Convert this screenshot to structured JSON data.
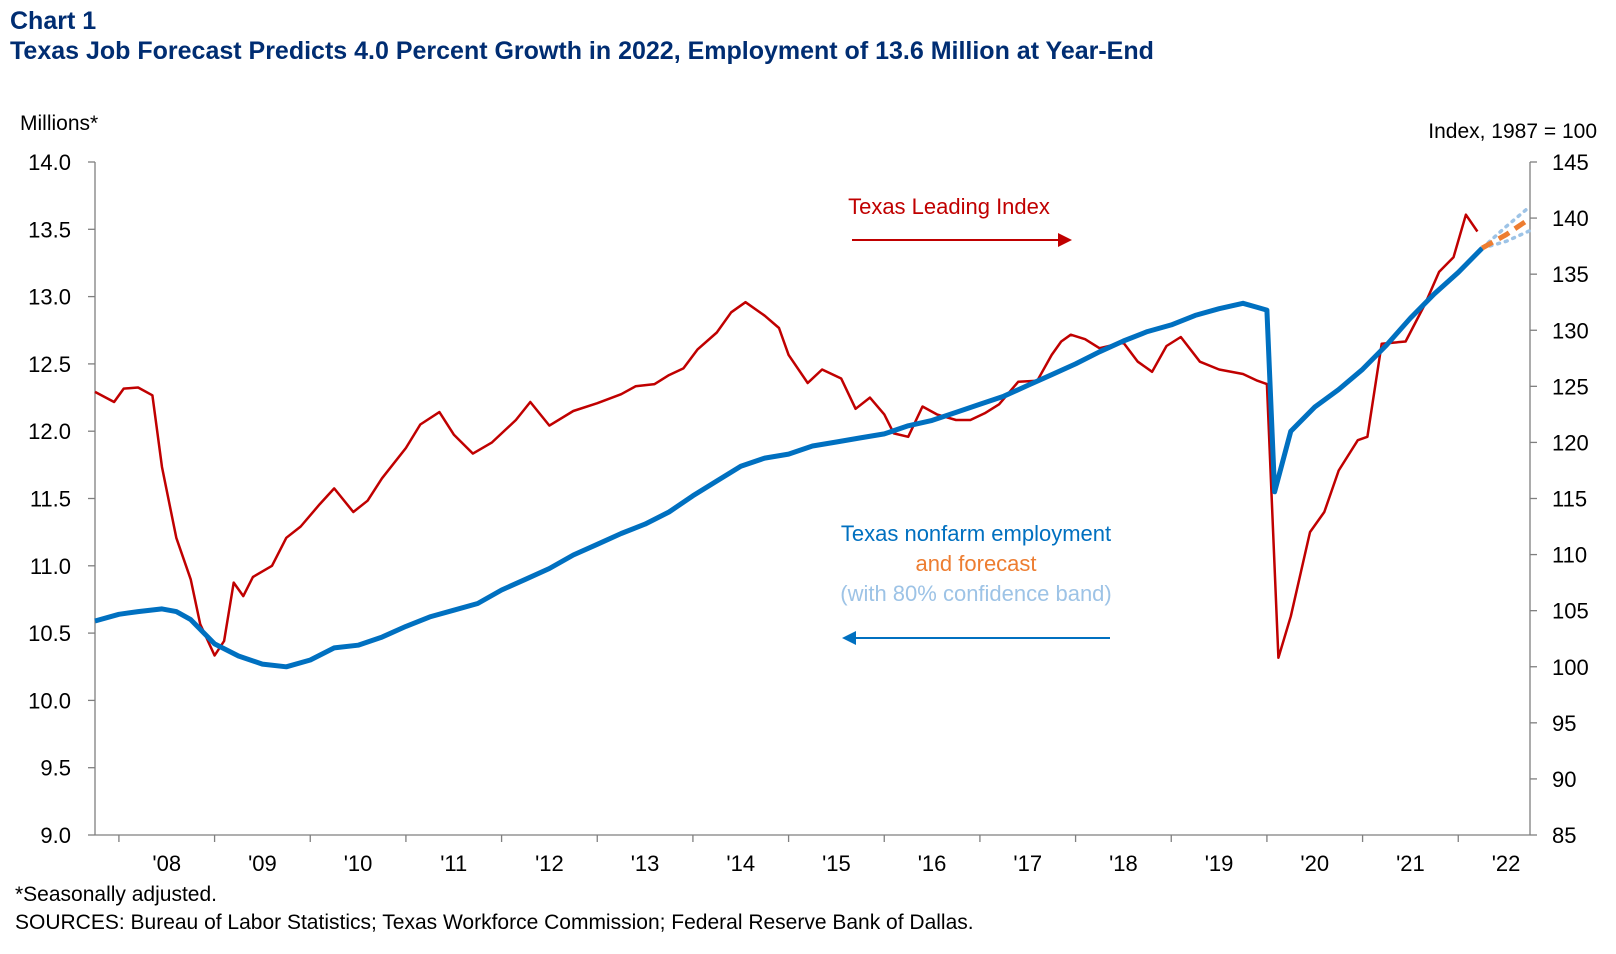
{
  "title_block": {
    "label": "Chart 1",
    "headline": "Texas Job Forecast Predicts 4.0 Percent Growth in 2022, Employment  of 13.6 Million at Year-End"
  },
  "footnotes": {
    "note": "*Seasonally adjusted.",
    "sources": "SOURCES: Bureau of Labor Statistics; Texas Workforce Commission; Federal Reserve Bank of Dallas."
  },
  "colors": {
    "employment": "#0070c0",
    "forecast": "#ed7d31",
    "band": "#9dc3e6",
    "leading": "#c00000",
    "title": "#002d72",
    "axis": "#7f7f7f"
  },
  "chart_data": {
    "type": "line",
    "left_axis": {
      "label": "Millions*",
      "ylim": [
        9.0,
        14.0
      ],
      "ticks": [
        "9.0",
        "9.5",
        "10.0",
        "10.5",
        "11.0",
        "11.5",
        "12.0",
        "12.5",
        "13.0",
        "13.5",
        "14.0"
      ]
    },
    "right_axis": {
      "label": "Index,  1987 = 100",
      "ylim": [
        85,
        145
      ],
      "ticks": [
        "85",
        "90",
        "95",
        "100",
        "105",
        "110",
        "115",
        "120",
        "125",
        "130",
        "135",
        "140",
        "145"
      ]
    },
    "x_axis": {
      "range": [
        2007.75,
        2022.75
      ],
      "ticks": [
        "'08",
        "'09",
        "'10",
        "'11",
        "'12",
        "'13",
        "'14",
        "'15",
        "'16",
        "'17",
        "'18",
        "'19",
        "'20",
        "'21",
        "'22"
      ]
    },
    "annotations": {
      "leading_label": "Texas Leading Index",
      "employment_label": "Texas nonfarm employment",
      "forecast_label": "and forecast",
      "band_label": "(with 80% confidence band)"
    },
    "series": [
      {
        "name": "Texas nonfarm employment",
        "axis": "left",
        "points": [
          [
            2007.75,
            10.59
          ],
          [
            2008.0,
            10.64
          ],
          [
            2008.2,
            10.66
          ],
          [
            2008.45,
            10.68
          ],
          [
            2008.6,
            10.66
          ],
          [
            2008.75,
            10.6
          ],
          [
            2009.0,
            10.42
          ],
          [
            2009.25,
            10.33
          ],
          [
            2009.5,
            10.27
          ],
          [
            2009.75,
            10.25
          ],
          [
            2010.0,
            10.3
          ],
          [
            2010.25,
            10.39
          ],
          [
            2010.5,
            10.41
          ],
          [
            2010.75,
            10.47
          ],
          [
            2011.0,
            10.55
          ],
          [
            2011.25,
            10.62
          ],
          [
            2011.5,
            10.67
          ],
          [
            2011.75,
            10.72
          ],
          [
            2012.0,
            10.82
          ],
          [
            2012.25,
            10.9
          ],
          [
            2012.5,
            10.98
          ],
          [
            2012.75,
            11.08
          ],
          [
            2013.0,
            11.16
          ],
          [
            2013.25,
            11.24
          ],
          [
            2013.5,
            11.31
          ],
          [
            2013.75,
            11.4
          ],
          [
            2014.0,
            11.52
          ],
          [
            2014.25,
            11.63
          ],
          [
            2014.5,
            11.74
          ],
          [
            2014.75,
            11.8
          ],
          [
            2015.0,
            11.83
          ],
          [
            2015.25,
            11.89
          ],
          [
            2015.5,
            11.92
          ],
          [
            2015.75,
            11.95
          ],
          [
            2016.0,
            11.98
          ],
          [
            2016.25,
            12.04
          ],
          [
            2016.5,
            12.08
          ],
          [
            2016.75,
            12.14
          ],
          [
            2017.0,
            12.2
          ],
          [
            2017.25,
            12.26
          ],
          [
            2017.5,
            12.34
          ],
          [
            2017.75,
            12.42
          ],
          [
            2018.0,
            12.5
          ],
          [
            2018.25,
            12.59
          ],
          [
            2018.5,
            12.67
          ],
          [
            2018.75,
            12.74
          ],
          [
            2019.0,
            12.79
          ],
          [
            2019.25,
            12.86
          ],
          [
            2019.5,
            12.91
          ],
          [
            2019.75,
            12.95
          ],
          [
            2019.9,
            12.92
          ],
          [
            2020.0,
            12.9
          ],
          [
            2020.08,
            11.55
          ],
          [
            2020.25,
            12.0
          ],
          [
            2020.5,
            12.18
          ],
          [
            2020.75,
            12.31
          ],
          [
            2021.0,
            12.46
          ],
          [
            2021.25,
            12.64
          ],
          [
            2021.5,
            12.84
          ],
          [
            2021.75,
            13.02
          ],
          [
            2022.0,
            13.18
          ],
          [
            2022.25,
            13.36
          ]
        ]
      },
      {
        "name": "Forecast",
        "axis": "left",
        "points": [
          [
            2022.25,
            13.36
          ],
          [
            2022.5,
            13.46
          ],
          [
            2022.75,
            13.58
          ]
        ]
      },
      {
        "name": "Confidence band upper",
        "axis": "left",
        "points": [
          [
            2022.25,
            13.36
          ],
          [
            2022.5,
            13.52
          ],
          [
            2022.75,
            13.67
          ]
        ]
      },
      {
        "name": "Confidence band lower",
        "axis": "left",
        "points": [
          [
            2022.25,
            13.36
          ],
          [
            2022.5,
            13.41
          ],
          [
            2022.75,
            13.49
          ]
        ]
      },
      {
        "name": "Texas Leading Index",
        "axis": "right",
        "points": [
          [
            2007.75,
            124.5
          ],
          [
            2007.95,
            123.6
          ],
          [
            2008.05,
            124.8
          ],
          [
            2008.2,
            124.9
          ],
          [
            2008.35,
            124.2
          ],
          [
            2008.45,
            117.8
          ],
          [
            2008.6,
            111.5
          ],
          [
            2008.75,
            107.8
          ],
          [
            2008.85,
            103.8
          ],
          [
            2009.0,
            101.0
          ],
          [
            2009.1,
            102.3
          ],
          [
            2009.2,
            107.5
          ],
          [
            2009.3,
            106.3
          ],
          [
            2009.4,
            108.0
          ],
          [
            2009.6,
            109.0
          ],
          [
            2009.75,
            111.5
          ],
          [
            2009.9,
            112.5
          ],
          [
            2010.1,
            114.5
          ],
          [
            2010.25,
            115.9
          ],
          [
            2010.45,
            113.8
          ],
          [
            2010.6,
            114.8
          ],
          [
            2010.75,
            116.8
          ],
          [
            2011.0,
            119.5
          ],
          [
            2011.15,
            121.6
          ],
          [
            2011.35,
            122.7
          ],
          [
            2011.5,
            120.7
          ],
          [
            2011.7,
            119.0
          ],
          [
            2011.9,
            120.0
          ],
          [
            2012.15,
            122.0
          ],
          [
            2012.3,
            123.6
          ],
          [
            2012.5,
            121.5
          ],
          [
            2012.75,
            122.8
          ],
          [
            2013.0,
            123.5
          ],
          [
            2013.25,
            124.3
          ],
          [
            2013.4,
            125.0
          ],
          [
            2013.6,
            125.2
          ],
          [
            2013.75,
            126.0
          ],
          [
            2013.9,
            126.6
          ],
          [
            2014.05,
            128.3
          ],
          [
            2014.25,
            129.8
          ],
          [
            2014.4,
            131.6
          ],
          [
            2014.55,
            132.5
          ],
          [
            2014.75,
            131.3
          ],
          [
            2014.9,
            130.2
          ],
          [
            2015.0,
            127.8
          ],
          [
            2015.2,
            125.3
          ],
          [
            2015.35,
            126.5
          ],
          [
            2015.55,
            125.7
          ],
          [
            2015.7,
            123.0
          ],
          [
            2015.85,
            124.0
          ],
          [
            2016.0,
            122.5
          ],
          [
            2016.1,
            120.8
          ],
          [
            2016.25,
            120.5
          ],
          [
            2016.4,
            123.2
          ],
          [
            2016.55,
            122.5
          ],
          [
            2016.75,
            122.0
          ],
          [
            2016.9,
            122.0
          ],
          [
            2017.05,
            122.6
          ],
          [
            2017.2,
            123.4
          ],
          [
            2017.4,
            125.4
          ],
          [
            2017.6,
            125.5
          ],
          [
            2017.75,
            127.8
          ],
          [
            2017.85,
            129.0
          ],
          [
            2017.95,
            129.6
          ],
          [
            2018.1,
            129.2
          ],
          [
            2018.25,
            128.4
          ],
          [
            2018.5,
            128.9
          ],
          [
            2018.65,
            127.2
          ],
          [
            2018.8,
            126.3
          ],
          [
            2018.95,
            128.6
          ],
          [
            2019.1,
            129.4
          ],
          [
            2019.3,
            127.2
          ],
          [
            2019.5,
            126.5
          ],
          [
            2019.75,
            126.1
          ],
          [
            2019.9,
            125.5
          ],
          [
            2020.0,
            125.2
          ],
          [
            2020.12,
            100.8
          ],
          [
            2020.25,
            104.5
          ],
          [
            2020.45,
            112.0
          ],
          [
            2020.6,
            113.8
          ],
          [
            2020.75,
            117.5
          ],
          [
            2020.95,
            120.2
          ],
          [
            2021.05,
            120.5
          ],
          [
            2021.2,
            128.8
          ],
          [
            2021.45,
            129.0
          ],
          [
            2021.65,
            132.3
          ],
          [
            2021.8,
            135.2
          ],
          [
            2021.95,
            136.5
          ],
          [
            2022.08,
            140.3
          ],
          [
            2022.2,
            138.8
          ]
        ]
      }
    ]
  }
}
